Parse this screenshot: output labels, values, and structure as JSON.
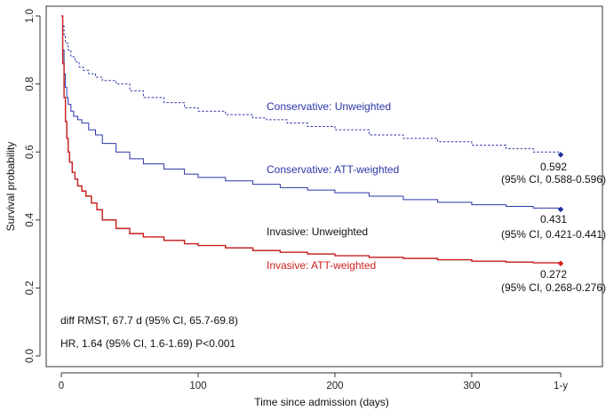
{
  "chart_data": {
    "type": "line",
    "title": "",
    "xlabel": "Time since admission (days)",
    "ylabel": "Survival probability",
    "xlim": [
      0,
      365
    ],
    "ylim": [
      0,
      1.0
    ],
    "x_ticks": [
      0,
      100,
      200,
      300,
      365
    ],
    "x_tick_labels": [
      "0",
      "100",
      "200",
      "300",
      "1-y"
    ],
    "y_ticks": [
      0.0,
      0.2,
      0.4,
      0.6,
      0.8,
      1.0
    ],
    "y_tick_labels": [
      "0.0",
      "0.2",
      "0.4",
      "0.6",
      "0.8",
      "1.0"
    ],
    "colors": {
      "conservative": "#2b35a8",
      "invasive_weighted": "#cc1f1f",
      "invasive_unweighted": "#222222",
      "marker_blue": "#1f2f9f",
      "marker_red": "#d42020"
    },
    "series": [
      {
        "name": "Conservative: Unweighted",
        "color": "#2b35a8",
        "style": "dotted",
        "x": [
          0,
          1,
          2,
          3,
          5,
          7,
          10,
          13,
          16,
          20,
          25,
          30,
          40,
          50,
          60,
          75,
          90,
          100,
          120,
          140,
          150,
          165,
          180,
          200,
          225,
          250,
          275,
          300,
          325,
          345,
          365
        ],
        "y": [
          1.0,
          0.97,
          0.94,
          0.92,
          0.9,
          0.88,
          0.865,
          0.85,
          0.84,
          0.83,
          0.82,
          0.81,
          0.8,
          0.78,
          0.76,
          0.745,
          0.73,
          0.72,
          0.71,
          0.7,
          0.695,
          0.685,
          0.675,
          0.665,
          0.65,
          0.64,
          0.63,
          0.62,
          0.61,
          0.6,
          0.592
        ]
      },
      {
        "name": "Conservative: ATT-weighted",
        "color": "#2b35a8",
        "style": "solid",
        "x": [
          0,
          1,
          2,
          3,
          4,
          5,
          7,
          9,
          12,
          15,
          20,
          25,
          30,
          40,
          50,
          60,
          75,
          90,
          100,
          120,
          140,
          160,
          180,
          200,
          225,
          250,
          275,
          300,
          325,
          345,
          365
        ],
        "y": [
          1.0,
          0.9,
          0.83,
          0.79,
          0.76,
          0.74,
          0.72,
          0.705,
          0.695,
          0.685,
          0.665,
          0.65,
          0.625,
          0.6,
          0.58,
          0.565,
          0.55,
          0.535,
          0.525,
          0.515,
          0.505,
          0.495,
          0.488,
          0.48,
          0.47,
          0.46,
          0.452,
          0.445,
          0.44,
          0.435,
          0.431
        ]
      },
      {
        "name": "Invasive: Unweighted",
        "color": "#222222",
        "style": "solid",
        "x": [
          0,
          1,
          2,
          3,
          4,
          5,
          6,
          8,
          10,
          12,
          15,
          18,
          22,
          26,
          30,
          40,
          50,
          60,
          75,
          90,
          100,
          120,
          140,
          160,
          180,
          200,
          225,
          250,
          275,
          300,
          325,
          345,
          365
        ],
        "y": [
          1.0,
          0.86,
          0.76,
          0.69,
          0.64,
          0.6,
          0.57,
          0.54,
          0.52,
          0.5,
          0.485,
          0.47,
          0.45,
          0.43,
          0.4,
          0.375,
          0.36,
          0.35,
          0.34,
          0.33,
          0.325,
          0.318,
          0.31,
          0.305,
          0.3,
          0.295,
          0.29,
          0.287,
          0.283,
          0.279,
          0.276,
          0.274,
          0.272
        ]
      },
      {
        "name": "Invasive: ATT-weighted",
        "color": "#cc1f1f",
        "style": "solid",
        "x": [
          0,
          1,
          2,
          3,
          4,
          5,
          6,
          8,
          10,
          12,
          15,
          18,
          22,
          26,
          30,
          40,
          50,
          60,
          75,
          90,
          100,
          120,
          140,
          160,
          180,
          200,
          225,
          250,
          275,
          300,
          325,
          345,
          365
        ],
        "y": [
          1.0,
          0.86,
          0.76,
          0.69,
          0.64,
          0.6,
          0.57,
          0.54,
          0.52,
          0.5,
          0.485,
          0.47,
          0.45,
          0.43,
          0.4,
          0.375,
          0.36,
          0.35,
          0.34,
          0.33,
          0.325,
          0.318,
          0.31,
          0.305,
          0.3,
          0.295,
          0.29,
          0.287,
          0.283,
          0.279,
          0.276,
          0.274,
          0.272
        ]
      }
    ],
    "endpoints": [
      {
        "series": "Conservative: Unweighted",
        "x": 365,
        "y": 0.592,
        "value_label": "0.592",
        "ci_label": "(95% CI, 0.588-0.596)",
        "color": "#1f2f9f"
      },
      {
        "series": "Conservative: ATT-weighted",
        "x": 365,
        "y": 0.431,
        "value_label": "0.431",
        "ci_label": "(95% CI, 0.421-0.441)",
        "color": "#1f2f9f"
      },
      {
        "series": "Invasive: ATT-weighted",
        "x": 365,
        "y": 0.272,
        "value_label": "0.272",
        "ci_label": "(95% CI, 0.268-0.276)",
        "color": "#d42020"
      }
    ],
    "annotations": {
      "series_labels": [
        {
          "text": "Conservative: Unweighted",
          "color": "#2b35a8"
        },
        {
          "text": "Conservative: ATT-weighted",
          "color": "#2b35a8"
        },
        {
          "text": "Invasive: Unweighted",
          "color": "#111111"
        },
        {
          "text": "Invasive: ATT-weighted",
          "color": "#cc1f1f"
        }
      ],
      "rmst": "diff RMST, 67.7 d (95% CI, 65.7-69.8)",
      "hr": "HR, 1.64 (95% CI, 1.6-1.69) P<0.001"
    }
  }
}
